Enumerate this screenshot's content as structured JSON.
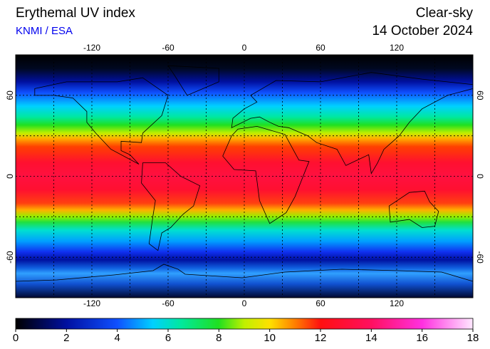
{
  "header": {
    "title": "Erythemal UV index",
    "source": "KNMI / ESA",
    "mode": "Clear-sky",
    "date": "14 October 2024"
  },
  "map": {
    "lonlim": [
      -180,
      180
    ],
    "latlim": [
      -90,
      90
    ],
    "lon_ticks": [
      -120,
      -60,
      0,
      60,
      120
    ],
    "lat_ticks": [
      60,
      0,
      -60
    ],
    "grid": true
  },
  "colorbar": {
    "lim": [
      0,
      18
    ],
    "ticks": [
      0,
      2,
      4,
      6,
      8,
      10,
      12,
      14,
      16,
      18
    ]
  }
}
